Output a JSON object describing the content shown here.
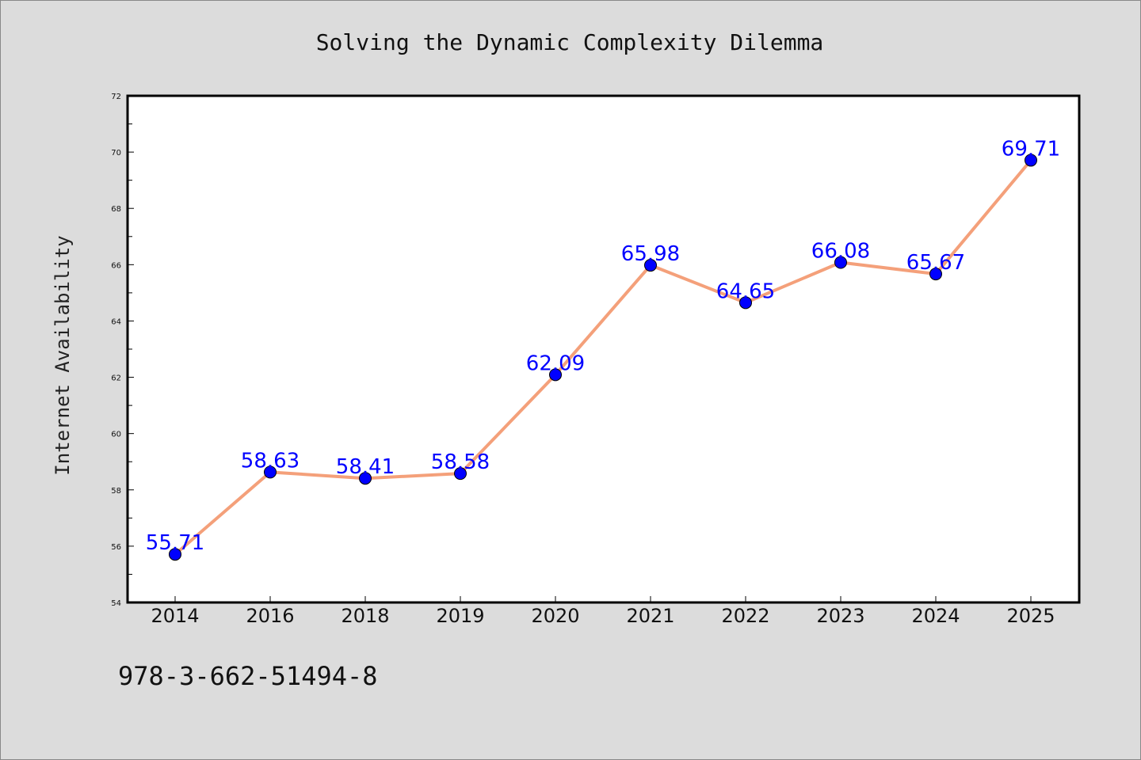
{
  "footer": {
    "text": "978-3-662-51494-8"
  },
  "colors": {
    "background": "#dcdcdc",
    "plot_background": "#ffffff",
    "line": "#f4a07a",
    "marker": "#0000ff",
    "label": "#0000ff"
  },
  "chart_data": {
    "type": "line",
    "title": "Solving the Dynamic Complexity Dilemma",
    "xlabel": "",
    "ylabel": "Internet Availability",
    "categories": [
      "2014",
      "2016",
      "2018",
      "2019",
      "2020",
      "2021",
      "2022",
      "2023",
      "2024",
      "2025"
    ],
    "series": [
      {
        "values": [
          55.71,
          58.63,
          58.41,
          58.58,
          62.09,
          65.98,
          64.65,
          66.08,
          65.67,
          69.71
        ]
      }
    ],
    "ylim": [
      54,
      72
    ],
    "yticks": [
      54,
      56,
      58,
      60,
      62,
      64,
      66,
      68,
      70,
      72
    ],
    "grid": false,
    "legend": "none",
    "markers": true,
    "data_labels": true
  }
}
